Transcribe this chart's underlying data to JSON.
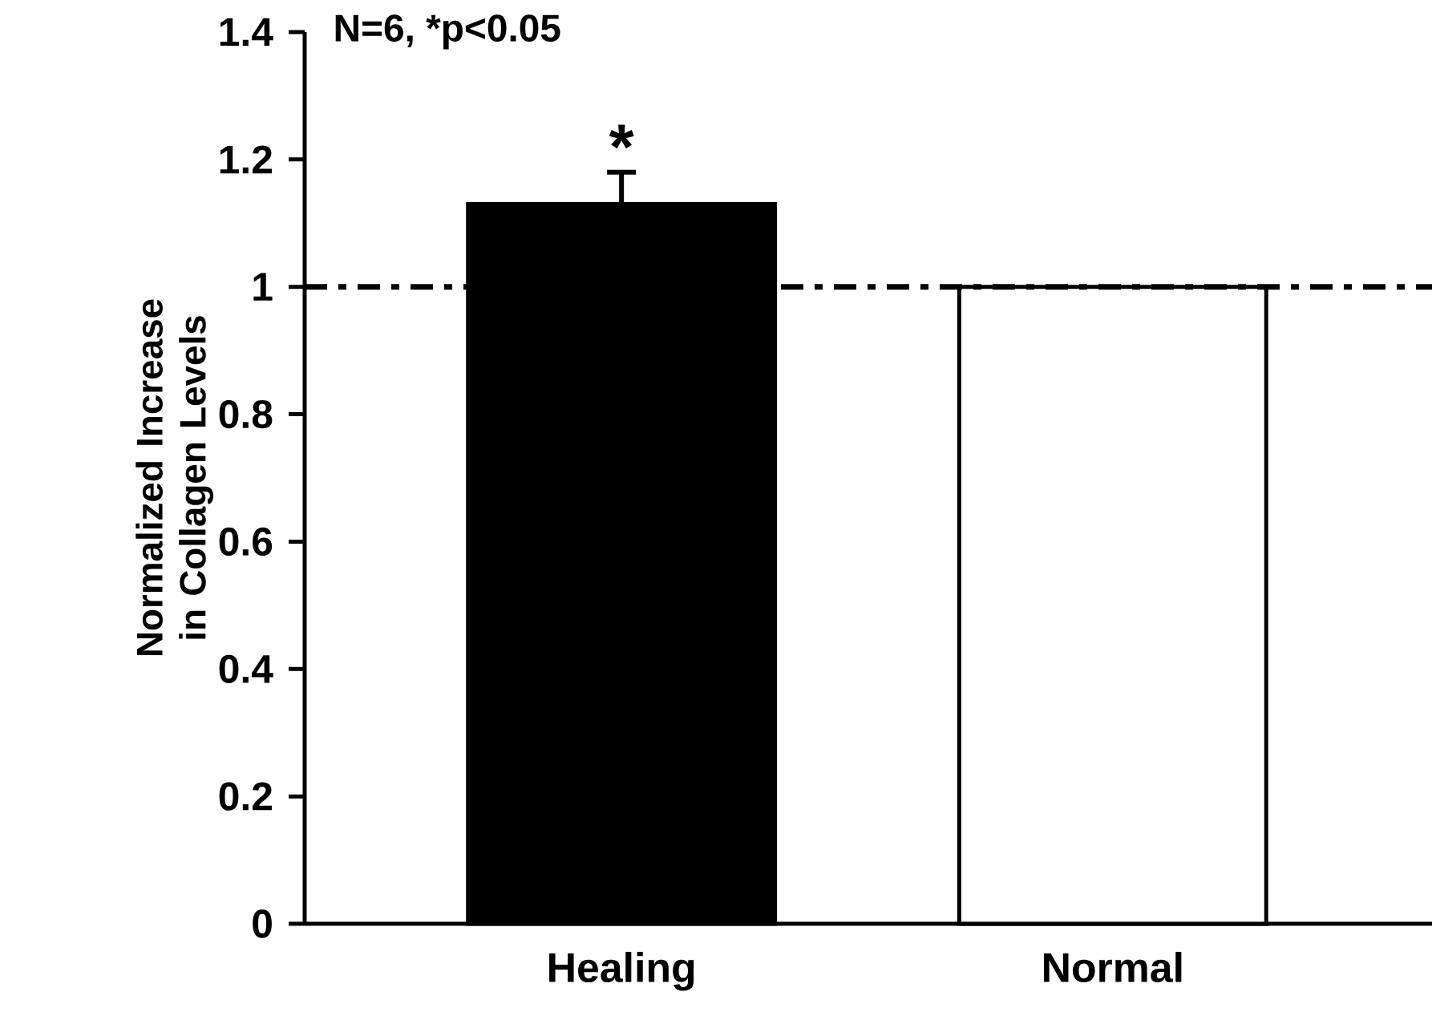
{
  "chart_data": {
    "type": "bar",
    "ylabel": "Normalized Increase in Collagen Levels",
    "categories": [
      "Healing",
      "Normal"
    ],
    "values": [
      1.13,
      1.0
    ],
    "colors": [
      "#000000",
      "#ffffff"
    ],
    "errors": [
      0.05,
      null
    ],
    "ylim": [
      0,
      1.4
    ],
    "yticks": [
      0,
      0.2,
      0.4,
      0.6,
      0.8,
      1,
      1.2,
      1.4
    ],
    "grid": false,
    "ref_lines": [
      {
        "axis": "y",
        "value": 1,
        "line_style": "dashdot",
        "color": "#000000"
      }
    ],
    "annotations": [
      "N=6, *p<0.05",
      {
        "text": "*",
        "x": "Healing",
        "y": 1.18
      }
    ]
  }
}
